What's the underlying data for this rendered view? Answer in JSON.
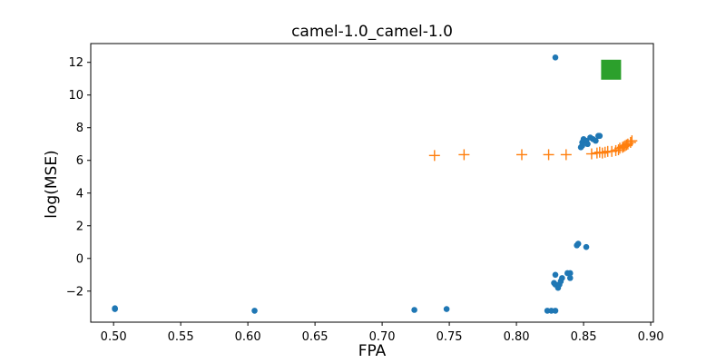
{
  "chart_data": {
    "type": "scatter",
    "title": "camel-1.0_camel-1.0",
    "xlabel": "FPA",
    "ylabel": "log(MSE)",
    "xlim": [
      0.483,
      0.902
    ],
    "ylim": [
      -3.9,
      13.15
    ],
    "xticks": [
      0.5,
      0.55,
      0.6,
      0.65,
      0.7,
      0.75,
      0.8,
      0.85,
      0.9
    ],
    "xtick_labels": [
      "0.50",
      "0.55",
      "0.60",
      "0.65",
      "0.70",
      "0.75",
      "0.80",
      "0.85",
      "0.90"
    ],
    "yticks": [
      -2,
      0,
      2,
      4,
      6,
      8,
      10,
      12
    ],
    "ytick_labels": [
      "−2",
      "0",
      "2",
      "4",
      "6",
      "8",
      "10",
      "12"
    ],
    "grid": false,
    "legend": false,
    "series": [
      {
        "marker": "circle",
        "color": "#1f77b4",
        "points": [
          [
            0.501,
            -3.1
          ],
          [
            0.501,
            -3.05
          ],
          [
            0.605,
            -3.2
          ],
          [
            0.724,
            -3.15
          ],
          [
            0.748,
            -3.1
          ],
          [
            0.823,
            -3.2
          ],
          [
            0.826,
            -3.2
          ],
          [
            0.829,
            -3.2
          ],
          [
            0.829,
            12.3
          ],
          [
            0.828,
            -1.5
          ],
          [
            0.829,
            -1.6
          ],
          [
            0.829,
            -1.0
          ],
          [
            0.831,
            -1.8
          ],
          [
            0.832,
            -1.6
          ],
          [
            0.833,
            -1.4
          ],
          [
            0.834,
            -1.2
          ],
          [
            0.838,
            -0.9
          ],
          [
            0.84,
            -1.2
          ],
          [
            0.84,
            -0.9
          ],
          [
            0.845,
            0.8
          ],
          [
            0.846,
            0.9
          ],
          [
            0.852,
            0.7
          ],
          [
            0.848,
            6.8
          ],
          [
            0.849,
            7.1
          ],
          [
            0.849,
            6.9
          ],
          [
            0.85,
            7.3
          ],
          [
            0.852,
            7.2
          ],
          [
            0.853,
            7.0
          ],
          [
            0.855,
            7.4
          ],
          [
            0.857,
            7.3
          ],
          [
            0.859,
            7.2
          ],
          [
            0.861,
            7.5
          ],
          [
            0.862,
            7.5
          ]
        ]
      },
      {
        "marker": "plus",
        "color": "#ff7f0e",
        "points": [
          [
            0.739,
            6.3
          ],
          [
            0.761,
            6.35
          ],
          [
            0.804,
            6.35
          ],
          [
            0.824,
            6.35
          ],
          [
            0.837,
            6.35
          ],
          [
            0.856,
            6.4
          ],
          [
            0.86,
            6.45
          ],
          [
            0.862,
            6.5
          ],
          [
            0.864,
            6.45
          ],
          [
            0.866,
            6.5
          ],
          [
            0.868,
            6.55
          ],
          [
            0.871,
            6.55
          ],
          [
            0.874,
            6.6
          ],
          [
            0.876,
            6.65
          ],
          [
            0.877,
            6.75
          ],
          [
            0.879,
            6.8
          ],
          [
            0.88,
            6.85
          ],
          [
            0.881,
            6.9
          ],
          [
            0.882,
            6.95
          ],
          [
            0.883,
            7.0
          ],
          [
            0.885,
            7.1
          ],
          [
            0.886,
            7.2
          ]
        ]
      },
      {
        "marker": "square",
        "color": "#2ca02c",
        "points": [
          [
            0.8705,
            11.55
          ]
        ]
      }
    ]
  }
}
